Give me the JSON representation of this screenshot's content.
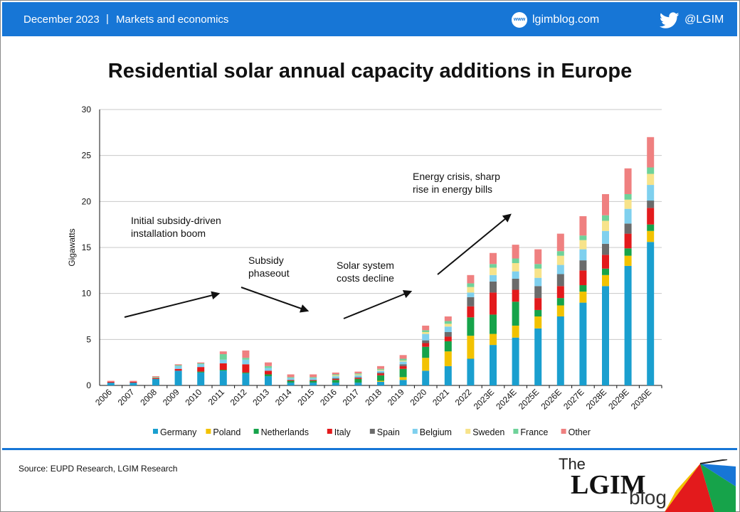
{
  "header": {
    "date": "December 2023",
    "separator": "|",
    "section": "Markets and economics",
    "globe_label": "www",
    "blog_url": "lgimblog.com",
    "twitter_handle": "@LGIM",
    "icons": [
      "globe-icon",
      "twitter-bird-icon"
    ]
  },
  "footer": {
    "source": "Source: EUPD Research, LGIM Research",
    "logo_the": "The",
    "logo_lgim": "LGIM",
    "logo_blog": "blog"
  },
  "colors": {
    "header_bg": "#1776d6",
    "Germany": "#1a9fcf",
    "Poland": "#f2c200",
    "Netherlands": "#16a34a",
    "Italy": "#e31a1c",
    "Spain": "#6b6b6b",
    "Belgium": "#7fd0ee",
    "Sweden": "#f7e38a",
    "France": "#6fd29a",
    "Other": "#ef8080"
  },
  "chart_data": {
    "type": "bar",
    "stacked": true,
    "title": "Residential solar annual capacity additions in Europe",
    "ylabel": "Gigawatts",
    "xlabel": "",
    "ylim": [
      0,
      30
    ],
    "yticks": [
      0,
      5,
      10,
      15,
      20,
      25,
      30
    ],
    "grid": true,
    "legend_position": "bottom",
    "categories": [
      "2006",
      "2007",
      "2008",
      "2009",
      "2010",
      "2011",
      "2012",
      "2013",
      "2014",
      "2015",
      "2016",
      "2017",
      "2018",
      "2019",
      "2020",
      "2021",
      "2022",
      "2023E",
      "2024E",
      "2025E",
      "2026E",
      "2027E",
      "2028E",
      "2029E",
      "2030E"
    ],
    "series": [
      {
        "name": "Germany",
        "values": [
          0.3,
          0.3,
          0.7,
          1.6,
          1.4,
          1.6,
          1.3,
          1.0,
          0.3,
          0.3,
          0.3,
          0.3,
          0.4,
          0.6,
          1.6,
          2.1,
          2.9,
          4.4,
          5.2,
          6.2,
          7.5,
          9.0,
          10.8,
          13.0,
          15.6
        ]
      },
      {
        "name": "Poland",
        "values": [
          0,
          0,
          0,
          0,
          0,
          0,
          0,
          0,
          0,
          0,
          0,
          0,
          0.1,
          0.3,
          1.4,
          1.6,
          2.5,
          1.2,
          1.3,
          1.3,
          1.2,
          1.2,
          1.2,
          1.1,
          1.2
        ]
      },
      {
        "name": "Netherlands",
        "values": [
          0,
          0,
          0,
          0,
          0.1,
          0.1,
          0.1,
          0.2,
          0.2,
          0.2,
          0.3,
          0.4,
          0.6,
          0.9,
          1.2,
          1.1,
          2.0,
          2.1,
          2.6,
          0.7,
          0.8,
          0.7,
          0.7,
          0.8,
          0.7
        ]
      },
      {
        "name": "Italy",
        "values": [
          0.1,
          0.1,
          0.1,
          0.2,
          0.5,
          0.7,
          0.9,
          0.4,
          0.1,
          0.1,
          0.1,
          0.1,
          0.2,
          0.3,
          0.4,
          0.5,
          1.2,
          2.4,
          1.3,
          1.3,
          1.3,
          1.6,
          1.5,
          1.6,
          1.8
        ]
      },
      {
        "name": "Spain",
        "values": [
          0,
          0,
          0,
          0,
          0,
          0,
          0,
          0,
          0,
          0,
          0.1,
          0.1,
          0.1,
          0.2,
          0.3,
          0.5,
          1.0,
          1.2,
          1.2,
          1.3,
          1.3,
          1.1,
          1.2,
          1.1,
          0.8
        ]
      },
      {
        "name": "Belgium",
        "values": [
          0,
          0,
          0,
          0.3,
          0.3,
          0.4,
          0.5,
          0.3,
          0.2,
          0.2,
          0.2,
          0.2,
          0.2,
          0.3,
          0.7,
          0.6,
          0.5,
          0.7,
          0.8,
          0.9,
          1.0,
          1.2,
          1.4,
          1.6,
          1.7
        ]
      },
      {
        "name": "Sweden",
        "values": [
          0,
          0,
          0,
          0,
          0,
          0,
          0,
          0,
          0,
          0,
          0.1,
          0.1,
          0.1,
          0.1,
          0.2,
          0.3,
          0.6,
          0.8,
          0.9,
          1.0,
          1.0,
          1.0,
          1.1,
          1.0,
          1.2
        ]
      },
      {
        "name": "France",
        "values": [
          0,
          0,
          0.1,
          0.1,
          0.1,
          0.6,
          0.2,
          0.2,
          0.1,
          0.1,
          0.1,
          0.1,
          0.1,
          0.2,
          0.2,
          0.3,
          0.4,
          0.4,
          0.5,
          0.5,
          0.5,
          0.5,
          0.6,
          0.6,
          0.7
        ]
      },
      {
        "name": "Other",
        "values": [
          0.1,
          0.1,
          0.1,
          0.1,
          0.1,
          0.3,
          0.8,
          0.4,
          0.3,
          0.3,
          0.2,
          0.2,
          0.3,
          0.4,
          0.5,
          0.5,
          0.9,
          1.2,
          1.5,
          1.6,
          1.9,
          2.1,
          2.3,
          2.8,
          3.3
        ]
      }
    ],
    "annotations": [
      {
        "text": "Initial subsidy-driven installation boom",
        "lines": [
          "Initial subsidy-driven",
          "installation boom"
        ]
      },
      {
        "text": "Subsidy phaseout",
        "lines": [
          "Subsidy",
          "phaseout"
        ]
      },
      {
        "text": "Solar system costs decline",
        "lines": [
          "Solar system",
          "costs decline"
        ]
      },
      {
        "text": "Energy crisis, sharp rise in energy bills",
        "lines": [
          "Energy crisis, sharp",
          "rise in energy bills"
        ]
      }
    ]
  }
}
